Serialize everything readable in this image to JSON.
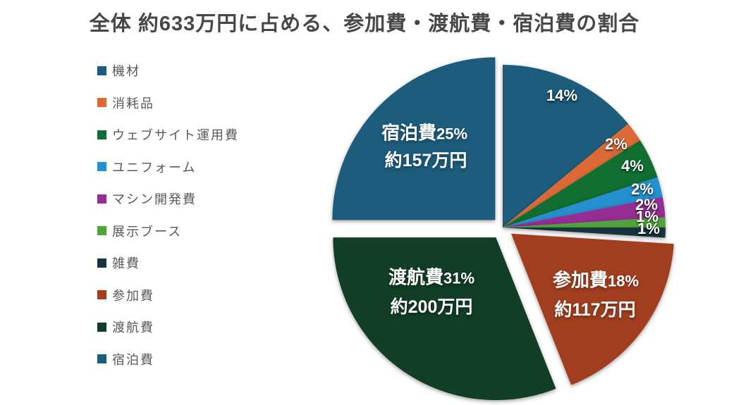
{
  "title": "全体 約633万円に占める、参加費・渡航費・宿泊費の割合",
  "chart_data": {
    "type": "pie",
    "title": "全体 約633万円に占める、参加費・渡航費・宿泊費の割合",
    "total_label": "約633万円",
    "legend_position": "left",
    "start_angle_deg": 0,
    "direction": "clockwise",
    "slices": [
      {
        "label": "機材",
        "pct": 14,
        "pct_label": "14%",
        "color": "#1D5C7C",
        "explode": 0
      },
      {
        "label": "消耗品",
        "pct": 2,
        "pct_label": "2%",
        "color": "#DD6A36",
        "explode": 0
      },
      {
        "label": "ウェブサイト運用費",
        "pct": 4,
        "pct_label": "4%",
        "color": "#106F30",
        "explode": 0
      },
      {
        "label": "ユニフォーム",
        "pct": 2,
        "pct_label": "2%",
        "color": "#2590CF",
        "explode": 0
      },
      {
        "label": "マシン開発費",
        "pct": 2,
        "pct_label": "2%",
        "color": "#952D92",
        "explode": 0
      },
      {
        "label": "展示ブース",
        "pct": 1,
        "pct_label": "1%",
        "color": "#4FA53C",
        "explode": 0
      },
      {
        "label": "雑費",
        "pct": 1,
        "pct_label": "1%",
        "color": "#16333E",
        "explode": 0
      },
      {
        "label": "参加費",
        "pct": 18,
        "pct_label": "18%",
        "amount": "約117万円",
        "color": "#A03E1F",
        "explode": 15
      },
      {
        "label": "渡航費",
        "pct": 31,
        "pct_label": "31%",
        "amount": "約200万円",
        "color": "#123D26",
        "explode": 17
      },
      {
        "label": "宿泊費",
        "pct": 25,
        "pct_label": "25%",
        "amount": "約157万円",
        "color": "#1D5C7C",
        "explode": 15
      }
    ]
  }
}
